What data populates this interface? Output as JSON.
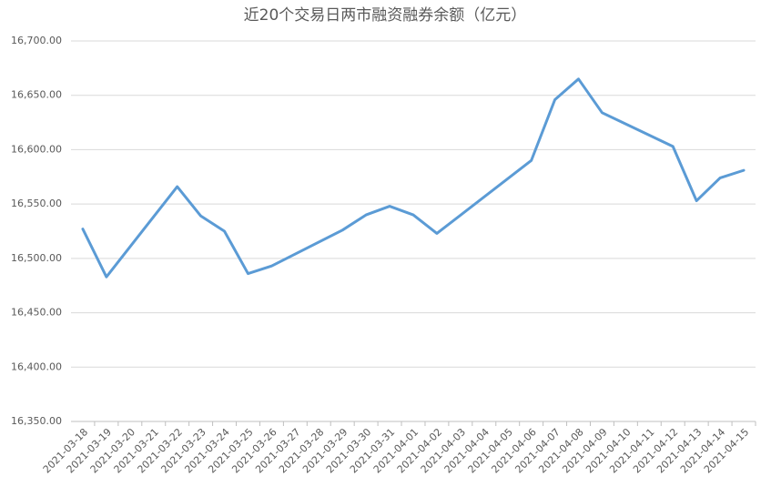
{
  "chart_data": {
    "type": "line",
    "title": "近20个交易日两市融资融券余额（亿元）",
    "x": [
      "2021-03-18",
      "2021-03-19",
      "2021-03-22",
      "2021-03-23",
      "2021-03-24",
      "2021-03-25",
      "2021-03-26",
      "2021-03-29",
      "2021-03-30",
      "2021-03-31",
      "2021-04-01",
      "2021-04-02",
      "2021-04-06",
      "2021-04-07",
      "2021-04-08",
      "2021-04-09",
      "2021-04-12",
      "2021-04-13",
      "2021-04-14",
      "2021-04-15"
    ],
    "series": [
      {
        "color": "#5b9bd5",
        "values": [
          16527,
          16483,
          16566,
          16539,
          16525,
          16486,
          16493,
          16526,
          16540,
          16548,
          16540,
          16523,
          16590,
          16646,
          16665,
          16634,
          16603,
          16553,
          16574,
          16581
        ]
      }
    ],
    "xlim": [
      "2021-03-18",
      "2021-04-15"
    ],
    "xticks": [
      "2021-03-18",
      "2021-03-19",
      "2021-03-20",
      "2021-03-21",
      "2021-03-22",
      "2021-03-23",
      "2021-03-24",
      "2021-03-25",
      "2021-03-26",
      "2021-03-27",
      "2021-03-28",
      "2021-03-29",
      "2021-03-30",
      "2021-03-31",
      "2021-04-01",
      "2021-04-02",
      "2021-04-03",
      "2021-04-04",
      "2021-04-05",
      "2021-04-06",
      "2021-04-07",
      "2021-04-08",
      "2021-04-09",
      "2021-04-10",
      "2021-04-11",
      "2021-04-12",
      "2021-04-13",
      "2021-04-14",
      "2021-04-15"
    ],
    "ylim": [
      16350,
      16700
    ],
    "yticks": [
      {
        "value": 16350,
        "label": "16,350.00"
      },
      {
        "value": 16400,
        "label": "16,400.00"
      },
      {
        "value": 16450,
        "label": "16,450.00"
      },
      {
        "value": 16500,
        "label": "16,500.00"
      },
      {
        "value": 16550,
        "label": "16,550.00"
      },
      {
        "value": 16600,
        "label": "16,600.00"
      },
      {
        "value": 16650,
        "label": "16,650.00"
      },
      {
        "value": 16700,
        "label": "16,700.00"
      }
    ],
    "grid": true
  }
}
